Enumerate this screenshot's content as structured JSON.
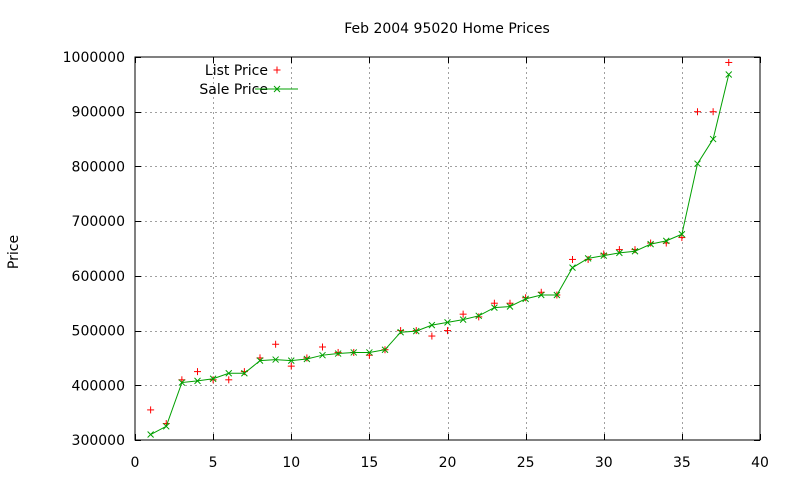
{
  "chart_data": {
    "type": "scatter",
    "title": "Feb 2004 95020 Home Prices",
    "xlabel": "",
    "ylabel": "Price",
    "xlim": [
      0,
      40
    ],
    "ylim": [
      300000,
      1000000
    ],
    "xticks": [
      0,
      5,
      10,
      15,
      20,
      25,
      30,
      35,
      40
    ],
    "yticks": [
      300000,
      400000,
      500000,
      600000,
      700000,
      800000,
      900000,
      1000000
    ],
    "grid": true,
    "legend_position": "top-left",
    "series": [
      {
        "name": "List Price",
        "style": "points",
        "marker": "plus",
        "color": "#ff0000",
        "x": [
          1,
          2,
          3,
          4,
          5,
          6,
          7,
          8,
          9,
          10,
          11,
          12,
          13,
          14,
          15,
          16,
          17,
          18,
          19,
          20,
          21,
          22,
          23,
          24,
          25,
          26,
          27,
          28,
          29,
          30,
          31,
          32,
          33,
          34,
          35,
          36,
          37,
          38
        ],
        "y": [
          355000,
          330000,
          410000,
          425000,
          410000,
          410000,
          425000,
          450000,
          475000,
          435000,
          450000,
          470000,
          460000,
          460000,
          455000,
          465000,
          500000,
          500000,
          490000,
          500000,
          530000,
          525000,
          550000,
          550000,
          560000,
          570000,
          565000,
          630000,
          630000,
          640000,
          648000,
          648000,
          660000,
          660000,
          670000,
          900000,
          900000,
          990000
        ]
      },
      {
        "name": "Sale Price",
        "style": "linespoints",
        "marker": "cross",
        "color": "#00a000",
        "x": [
          1,
          2,
          3,
          4,
          5,
          6,
          7,
          8,
          9,
          10,
          11,
          12,
          13,
          14,
          15,
          16,
          17,
          18,
          19,
          20,
          21,
          22,
          23,
          24,
          25,
          26,
          27,
          28,
          29,
          30,
          31,
          32,
          33,
          34,
          35,
          36,
          37,
          38
        ],
        "y": [
          310000,
          325000,
          405000,
          408000,
          412000,
          422000,
          422000,
          445000,
          447000,
          445000,
          448000,
          455000,
          458000,
          460000,
          460000,
          465000,
          497000,
          499000,
          510000,
          515000,
          520000,
          527000,
          542000,
          544000,
          558000,
          565000,
          565000,
          615000,
          632000,
          637000,
          642000,
          645000,
          658000,
          664000,
          676000,
          805000,
          850000,
          968000
        ]
      }
    ]
  }
}
